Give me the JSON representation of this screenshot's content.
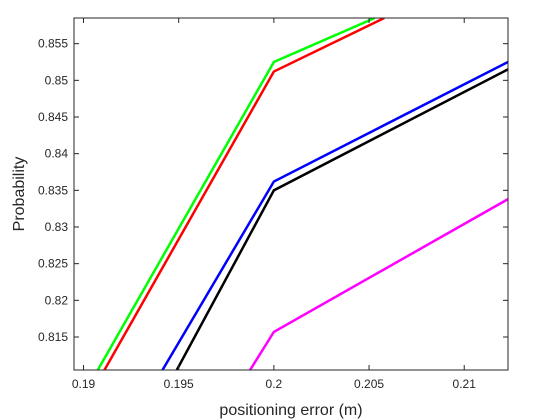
{
  "chart_data": {
    "type": "line",
    "xlabel": "positioning error (m)",
    "ylabel": "Probability",
    "xlim": [
      0.1895,
      0.2123
    ],
    "ylim": [
      0.8105,
      0.8585
    ],
    "xticks": [
      0.19,
      0.195,
      0.2,
      0.205,
      0.21
    ],
    "xtick_labels": [
      "0.19",
      "0.195",
      "0.2",
      "0.205",
      "0.21"
    ],
    "yticks": [
      0.815,
      0.82,
      0.825,
      0.83,
      0.835,
      0.84,
      0.845,
      0.85,
      0.855
    ],
    "ytick_labels": [
      "0.815",
      "0.82",
      "0.825",
      "0.83",
      "0.835",
      "0.84",
      "0.845",
      "0.85",
      "0.855"
    ],
    "grid": false,
    "series": [
      {
        "color": "#00ff00",
        "points": [
          [
            0.19075,
            0.8105
          ],
          [
            0.2,
            0.8525
          ],
          [
            0.2053,
            0.8585
          ]
        ]
      },
      {
        "color": "#ff0000",
        "points": [
          [
            0.1911,
            0.8105
          ],
          [
            0.2,
            0.8512
          ],
          [
            0.2058,
            0.8585
          ]
        ]
      },
      {
        "color": "#0000ff",
        "points": [
          [
            0.19415,
            0.8105
          ],
          [
            0.2,
            0.8362
          ],
          [
            0.2123,
            0.8525
          ]
        ]
      },
      {
        "color": "#000000",
        "points": [
          [
            0.1949,
            0.8105
          ],
          [
            0.2,
            0.835
          ],
          [
            0.2123,
            0.8515
          ]
        ]
      },
      {
        "color": "#ff00ff",
        "points": [
          [
            0.19875,
            0.8105
          ],
          [
            0.2,
            0.8157
          ],
          [
            0.2123,
            0.8338
          ]
        ]
      }
    ]
  }
}
